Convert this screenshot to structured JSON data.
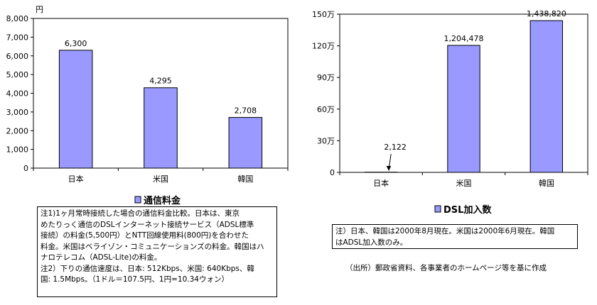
{
  "chart_data": [
    {
      "type": "bar",
      "unit_label": "円",
      "categories": [
        "日本",
        "米国",
        "韓国"
      ],
      "values": [
        6300,
        4295,
        2708
      ],
      "value_labels": [
        "6,300",
        "4,295",
        "2,708"
      ],
      "ylim": [
        0,
        8000
      ],
      "yticks": [
        0,
        1000,
        2000,
        3000,
        4000,
        5000,
        6000,
        7000,
        8000
      ],
      "ytick_labels": [
        "0",
        "1,000",
        "2,000",
        "3,000",
        "4,000",
        "5,000",
        "6,000",
        "7,000",
        "8,000"
      ],
      "legend": "通信料金",
      "legend_position": "bottom",
      "bar_color": "#9999ff",
      "grid": false
    },
    {
      "type": "bar",
      "categories": [
        "日本",
        "米国",
        "韓国"
      ],
      "values": [
        2122,
        1204478,
        1438820
      ],
      "value_labels": [
        "2,122",
        "1,204,478",
        "1,438,820"
      ],
      "ylim": [
        0,
        1500000
      ],
      "yticks": [
        0,
        300000,
        600000,
        900000,
        1200000,
        1500000
      ],
      "ytick_labels": [
        "0",
        "30万",
        "60万",
        "90万",
        "120万",
        "150万"
      ],
      "legend": "DSL加入数",
      "legend_position": "bottom",
      "bar_color": "#9999ff",
      "grid": false
    }
  ],
  "notes": {
    "left": [
      "注1)1ヶ月常時接続した場合の通信料金比較。日本は、東京",
      "めたりっく通信のDSLインターネット接続サービス（ADSL標準",
      "接続）の料金(5,500円）とNTT回線使用料(800円)を合わせた",
      "料金。米国はベライゾン・コミュニケーションズの料金。韓国はハ",
      "ナロテレコム（ADSL-Lite)の料金。",
      "注2）下りの通信速度は、日本: 512Kbps、米国: 640Kbps、韓",
      "国: 1.5Mbps。（1ドル＝107.5円、1円=10.34ウォン）"
    ],
    "right": [
      "注）日本、韓国は2000年8月現在。米国は2000年6月現在。韓国",
      "はADSL加入数のみ。"
    ]
  },
  "source": "（出所）郵政省資料、各事業者のホームページ等を基に作成"
}
